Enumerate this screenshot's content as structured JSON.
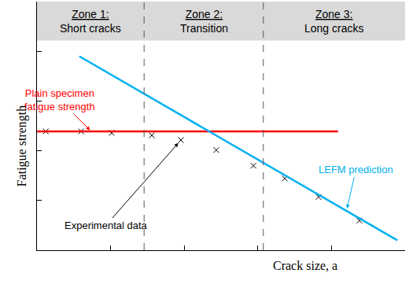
{
  "chart_data": {
    "type": "scatter",
    "x_label": "Crack size, a",
    "y_label": "Fatigue strength",
    "xlim": [
      0,
      10
    ],
    "ylim": [
      0,
      10
    ],
    "xticks": [
      0,
      2,
      4,
      6,
      8,
      10
    ],
    "yticks": [
      0,
      2,
      4,
      6,
      8,
      10
    ],
    "tick_labels": false,
    "grid": false,
    "header_ylim": [
      8.43,
      10
    ],
    "zones": [
      {
        "title": "Zone 1:",
        "subtitle": "Short cracks",
        "xlim": [
          0,
          2.91
        ]
      },
      {
        "title": "Zone 2:",
        "subtitle": "Transition",
        "xlim": [
          2.91,
          6.15
        ]
      },
      {
        "title": "Zone 3:",
        "subtitle": "Long cracks",
        "xlim": [
          6.15,
          10
        ]
      }
    ],
    "series": [
      {
        "name": "Experimental data",
        "label": [
          "Experimental data"
        ],
        "type": "scatter",
        "marker": "x",
        "color": "#000000",
        "x": [
          0.24,
          1.2,
          2.03,
          3.12,
          3.91,
          4.87,
          5.88,
          6.73,
          7.65,
          8.76
        ],
        "values": [
          4.78,
          4.78,
          4.72,
          4.62,
          4.43,
          4.03,
          3.4,
          2.89,
          2.14,
          1.19
        ]
      },
      {
        "name": "Plain specimen fatigue strength",
        "label": [
          "Plain specimen",
          "fatigue strength"
        ],
        "type": "line",
        "line_style": "solid",
        "color": "#ff0000",
        "x": [
          0,
          8.18
        ],
        "values": [
          4.78,
          4.78
        ]
      },
      {
        "name": "LEFM prediction",
        "label": [
          "LEFM prediction"
        ],
        "type": "line",
        "line_style": "solid",
        "color": "#00b0f0",
        "x": [
          1.15,
          9.79
        ],
        "values": [
          7.8,
          0.4
        ]
      }
    ]
  }
}
